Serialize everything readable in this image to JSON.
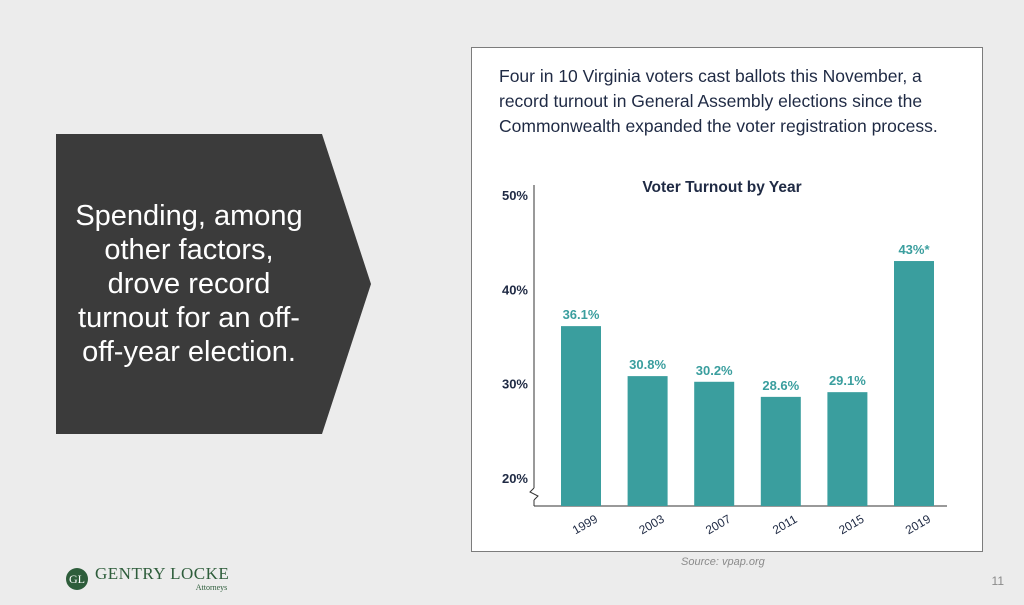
{
  "slide": {
    "callout": "Spending, among other factors, drove record turnout for an off-off-year election.",
    "headline": "Four in 10 Virginia voters cast ballots this November, a record turnout in General Assembly elections since the Commonwealth expanded the voter registration process.",
    "source": "Source: vpap.org",
    "page_number": "11",
    "logo_name": "GENTRY LOCKE",
    "logo_sub": "Attorneys",
    "logo_mark": "GL"
  },
  "colors": {
    "bar": "#3a9e9e",
    "label": "#3a9e9e",
    "callout_bg": "#3b3b3b",
    "title": "#1f2a44",
    "brand": "#2e5d3b"
  },
  "chart_data": {
    "type": "bar",
    "title": "Voter Turnout by Year",
    "xlabel": "",
    "ylabel": "",
    "categories": [
      "1999",
      "2003",
      "2007",
      "2011",
      "2015",
      "2019"
    ],
    "values": [
      36.1,
      30.8,
      30.2,
      28.6,
      29.1,
      43
    ],
    "data_labels": [
      "36.1%",
      "30.8%",
      "30.2%",
      "28.6%",
      "29.1%",
      "43%*"
    ],
    "y_ticks": [
      20,
      30,
      40,
      50
    ],
    "y_tick_labels": [
      "20%",
      "30%",
      "40%",
      "50%"
    ],
    "ylim": [
      20,
      50
    ],
    "axis_break": true,
    "grid": false,
    "legend": "none"
  }
}
